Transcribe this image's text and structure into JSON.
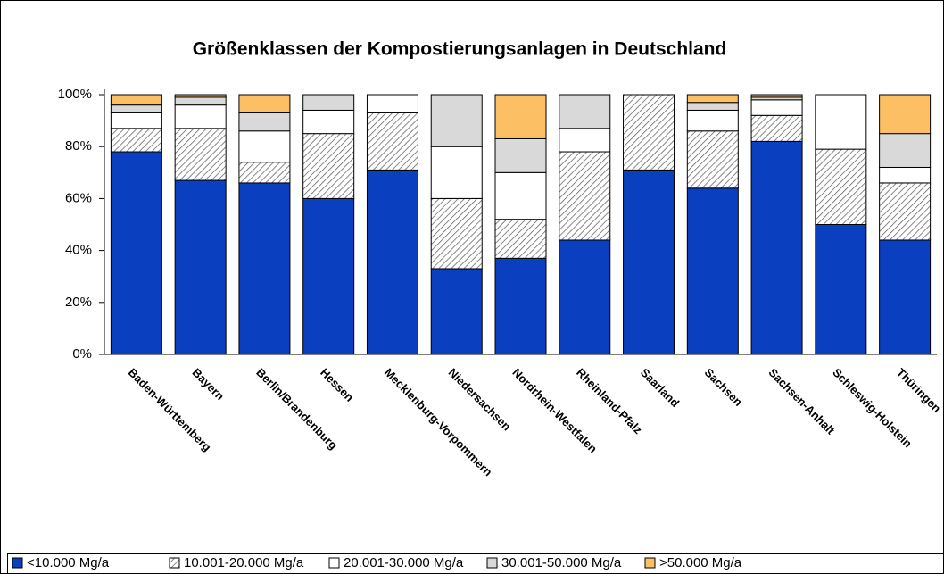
{
  "chart_data": {
    "type": "stacked_bar",
    "title": "Größenklassen der Kompostierungsanlagen in  Deutschland",
    "categories": [
      "Baden-Württemberg",
      "Bayern",
      "Berlin/Brandenburg",
      "Hessen",
      "Mecklenburg-Vorpommern",
      "Niedersachsen",
      "Nordrhein-Westfalen",
      "Rheinland-Pfalz",
      "Saarland",
      "Sachsen",
      "Sachsen-Anhalt",
      "Schleswig-Holstein",
      "Thüringen"
    ],
    "series": [
      {
        "name": "<10.000 Mg/a",
        "color": "#0a3fbf",
        "values": [
          78,
          67,
          66,
          60,
          71,
          33,
          37,
          44,
          71,
          64,
          82,
          50,
          44
        ]
      },
      {
        "name": "10.001-20.000 Mg/a",
        "color": "#d9d9d9",
        "pattern": "hatch",
        "values": [
          9,
          20,
          8,
          25,
          22,
          27,
          15,
          34,
          29,
          22,
          10,
          29,
          22
        ]
      },
      {
        "name": "20.001-30.000 Mg/a",
        "color": "#ffffff",
        "values": [
          6,
          9,
          12,
          9,
          7,
          20,
          18,
          9,
          0,
          8,
          6,
          21,
          6
        ]
      },
      {
        "name": "30.001-50.000 Mg/a",
        "color": "#d9d9d9",
        "values": [
          3,
          3,
          7,
          6,
          0,
          20,
          13,
          13,
          0,
          3,
          1,
          0,
          13
        ]
      },
      {
        "name": ">50.000 Mg/a",
        "color": "#fcbf64",
        "values": [
          4,
          1,
          7,
          0,
          0,
          0,
          17,
          0,
          0,
          3,
          1,
          0,
          15
        ]
      }
    ],
    "ylim": [
      0,
      100
    ],
    "yticks": [
      {
        "value": 0,
        "label": "0%"
      },
      {
        "value": 20,
        "label": "20%"
      },
      {
        "value": 40,
        "label": "40%"
      },
      {
        "value": 60,
        "label": "60%"
      },
      {
        "value": 80,
        "label": "80%"
      },
      {
        "value": 100,
        "label": "100%"
      }
    ],
    "grid": false,
    "legend": "bottom"
  }
}
